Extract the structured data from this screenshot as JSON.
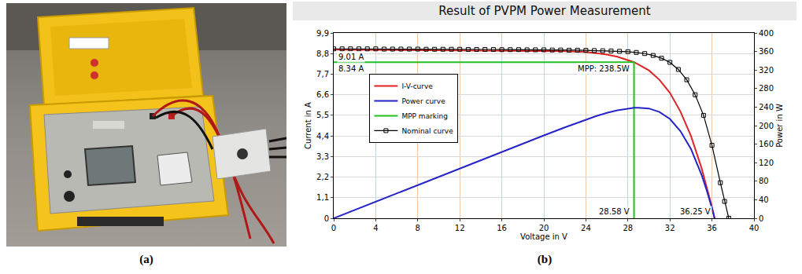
{
  "photo": {
    "label": "(a)"
  },
  "chart_data": {
    "type": "line",
    "panel_label": "(b)",
    "title": "Result of PVPM Power Measurement",
    "x_label": "Voltage in V",
    "y_label": "Current in A",
    "y2_label": "Power in W",
    "xlim": [
      0,
      40
    ],
    "xticks": [
      0,
      4,
      8,
      12,
      16,
      20,
      24,
      28,
      32,
      36,
      40
    ],
    "ylim": [
      0,
      9.9
    ],
    "yticks": [
      0,
      {
        "value": 1.1,
        "label": "1,1"
      },
      {
        "value": 2.2,
        "label": "2,2"
      },
      {
        "value": 3.3,
        "label": "3,3"
      },
      {
        "value": 4.4,
        "label": "4,4"
      },
      {
        "value": 5.5,
        "label": "5,5"
      },
      {
        "value": 6.6,
        "label": "6,6"
      },
      {
        "value": 7.7,
        "label": "7,7"
      },
      {
        "value": 8.8,
        "label": "8,8"
      },
      {
        "value": 9.9,
        "label": "9,9"
      }
    ],
    "y2lim": [
      0,
      400
    ],
    "y2ticks": [
      0,
      40,
      80,
      120,
      160,
      200,
      240,
      280,
      320,
      360,
      400
    ],
    "grid": true,
    "legend": "upper left",
    "series": [
      {
        "name": "I-V-curve",
        "color": "#e02424",
        "line_style": "solid",
        "x": [
          0,
          2,
          4,
          6,
          8,
          10,
          12,
          14,
          16,
          18,
          20,
          22,
          24,
          25,
          26,
          27,
          28,
          28.58,
          29,
          30,
          31,
          32,
          33,
          34,
          35,
          35.5,
          36,
          36.25
        ],
        "values": [
          9.01,
          9.0,
          9.0,
          8.99,
          8.99,
          8.98,
          8.97,
          8.97,
          8.96,
          8.95,
          8.94,
          8.92,
          8.88,
          8.83,
          8.75,
          8.63,
          8.45,
          8.34,
          8.22,
          7.9,
          7.4,
          6.7,
          5.7,
          4.4,
          2.7,
          1.7,
          0.6,
          0
        ]
      },
      {
        "name": "Power curve",
        "color": "#2424c8",
        "line_style": "solid",
        "axis": "y2",
        "x": [
          0,
          2,
          4,
          6,
          8,
          10,
          12,
          14,
          16,
          18,
          20,
          22,
          24,
          25,
          26,
          27,
          28,
          28.58,
          29,
          30,
          31,
          32,
          33,
          34,
          35,
          35.5,
          36,
          36.25
        ],
        "values": [
          0,
          18.0,
          36.0,
          53.9,
          71.9,
          89.8,
          107.6,
          125.6,
          143.4,
          161.1,
          178.8,
          196.2,
          213.1,
          220.8,
          227.5,
          233.0,
          236.6,
          238.5,
          238.4,
          237.0,
          229.4,
          214.4,
          188.1,
          149.6,
          94.5,
          60.4,
          21.6,
          0
        ]
      },
      {
        "name": "MPP marking",
        "color": "#22c022",
        "line_style": "solid",
        "x": [
          0,
          28.58,
          28.58
        ],
        "values": [
          8.34,
          8.34,
          0
        ]
      },
      {
        "name": "Nominal curve",
        "color": "#000000",
        "line_style": "solid",
        "marker": "square-open",
        "x": [
          0,
          0.8,
          1.6,
          2.4,
          3.2,
          4.0,
          4.8,
          5.6,
          6.4,
          7.2,
          8.0,
          8.8,
          9.6,
          10.4,
          11.2,
          12.0,
          12.8,
          13.6,
          14.4,
          15.2,
          16.0,
          16.8,
          17.6,
          18.4,
          19.2,
          20.0,
          20.8,
          21.6,
          22.4,
          23.2,
          24.0,
          24.8,
          25.6,
          26.4,
          27.2,
          28.0,
          28.8,
          29.6,
          30.4,
          31.2,
          32.0,
          32.8,
          33.6,
          34.4,
          35.2,
          36.0,
          36.8,
          37.2,
          37.6
        ],
        "values": [
          9.05,
          9.05,
          9.05,
          9.05,
          9.05,
          9.05,
          9.04,
          9.04,
          9.04,
          9.04,
          9.04,
          9.03,
          9.03,
          9.03,
          9.03,
          9.03,
          9.02,
          9.02,
          9.02,
          9.02,
          9.01,
          9.01,
          9.01,
          9.0,
          9.0,
          9.0,
          8.99,
          8.99,
          8.98,
          8.98,
          8.97,
          8.96,
          8.95,
          8.94,
          8.92,
          8.9,
          8.86,
          8.8,
          8.7,
          8.55,
          8.33,
          7.95,
          7.4,
          6.6,
          5.5,
          3.9,
          1.9,
          0.9,
          0
        ]
      }
    ],
    "annotations": [
      {
        "text": "9.01 A",
        "x": 0.3,
        "y": 8.95
      },
      {
        "text": "8.34 A",
        "x": 0.3,
        "y": 8.3
      },
      {
        "text": "MPP: 238.5W",
        "x": 28.3,
        "y": 8.3
      },
      {
        "text": "28.58 V",
        "x": 28.3,
        "y": 0.05
      },
      {
        "text": "36.25 V",
        "x": 36.0,
        "y": 0.05
      }
    ]
  }
}
